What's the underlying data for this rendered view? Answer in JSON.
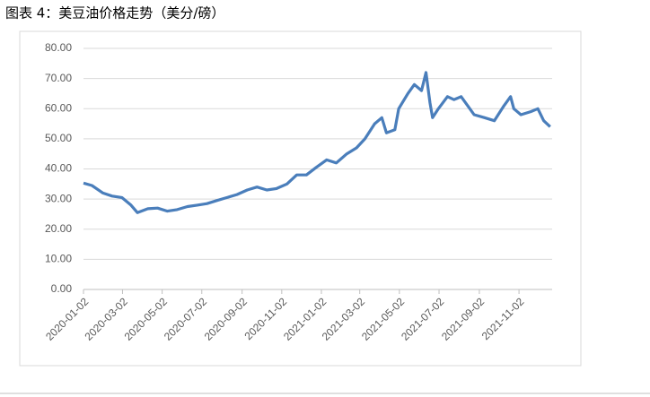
{
  "chart_data": {
    "type": "line",
    "title": "图表 4：美豆油价格走势（美分/磅）",
    "x": [
      "2020-01-02",
      "2020-01-15",
      "2020-02-01",
      "2020-02-15",
      "2020-03-01",
      "2020-03-15",
      "2020-03-25",
      "2020-04-10",
      "2020-04-25",
      "2020-05-10",
      "2020-05-25",
      "2020-06-10",
      "2020-06-25",
      "2020-07-10",
      "2020-07-25",
      "2020-08-10",
      "2020-08-25",
      "2020-09-10",
      "2020-09-25",
      "2020-10-10",
      "2020-10-25",
      "2020-11-10",
      "2020-11-25",
      "2020-12-10",
      "2020-12-25",
      "2021-01-10",
      "2021-01-25",
      "2021-02-10",
      "2021-02-25",
      "2021-03-10",
      "2021-03-25",
      "2021-04-05",
      "2021-04-12",
      "2021-04-25",
      "2021-05-01",
      "2021-05-15",
      "2021-05-25",
      "2021-06-05",
      "2021-06-12",
      "2021-06-18",
      "2021-06-22",
      "2021-07-01",
      "2021-07-15",
      "2021-07-25",
      "2021-08-05",
      "2021-08-15",
      "2021-08-25",
      "2021-09-10",
      "2021-09-25",
      "2021-10-10",
      "2021-10-20",
      "2021-10-25",
      "2021-11-05",
      "2021-11-20",
      "2021-12-01",
      "2021-12-10",
      "2021-12-20"
    ],
    "series": [
      {
        "name": "美豆油",
        "color": "#4a7ebb",
        "values": [
          35.3,
          34.5,
          32,
          31,
          30.5,
          28,
          25.5,
          26.8,
          27,
          26,
          26.5,
          27.5,
          28,
          28.5,
          29.5,
          30.5,
          31.5,
          33,
          34,
          33,
          33.5,
          35,
          38,
          38,
          40.5,
          43,
          42,
          45,
          47,
          50,
          55,
          57,
          52,
          53,
          60,
          65,
          68,
          66,
          72,
          62,
          57,
          60,
          64,
          63,
          64,
          61,
          58,
          57,
          56,
          61,
          64,
          60,
          58,
          59,
          60,
          56,
          54
        ]
      }
    ],
    "xlim": [
      "2020-01-02",
      "2021-12-23"
    ],
    "xticks": [
      "2020-01-02",
      "2020-03-02",
      "2020-05-02",
      "2020-07-02",
      "2020-09-02",
      "2020-11-02",
      "2021-01-02",
      "2021-03-02",
      "2021-05-02",
      "2021-07-02",
      "2021-09-02",
      "2021-11-02"
    ],
    "ylim": [
      0,
      80
    ],
    "yticks": [
      {
        "value": 0,
        "label": "0.00"
      },
      {
        "value": 10,
        "label": "10.00"
      },
      {
        "value": 20,
        "label": "20.00"
      },
      {
        "value": 30,
        "label": "30.00"
      },
      {
        "value": 40,
        "label": "40.00"
      },
      {
        "value": 50,
        "label": "50.00"
      },
      {
        "value": 60,
        "label": "60.00"
      },
      {
        "value": 70,
        "label": "70.00"
      },
      {
        "value": 80,
        "label": "80.00"
      }
    ],
    "grid": true
  }
}
